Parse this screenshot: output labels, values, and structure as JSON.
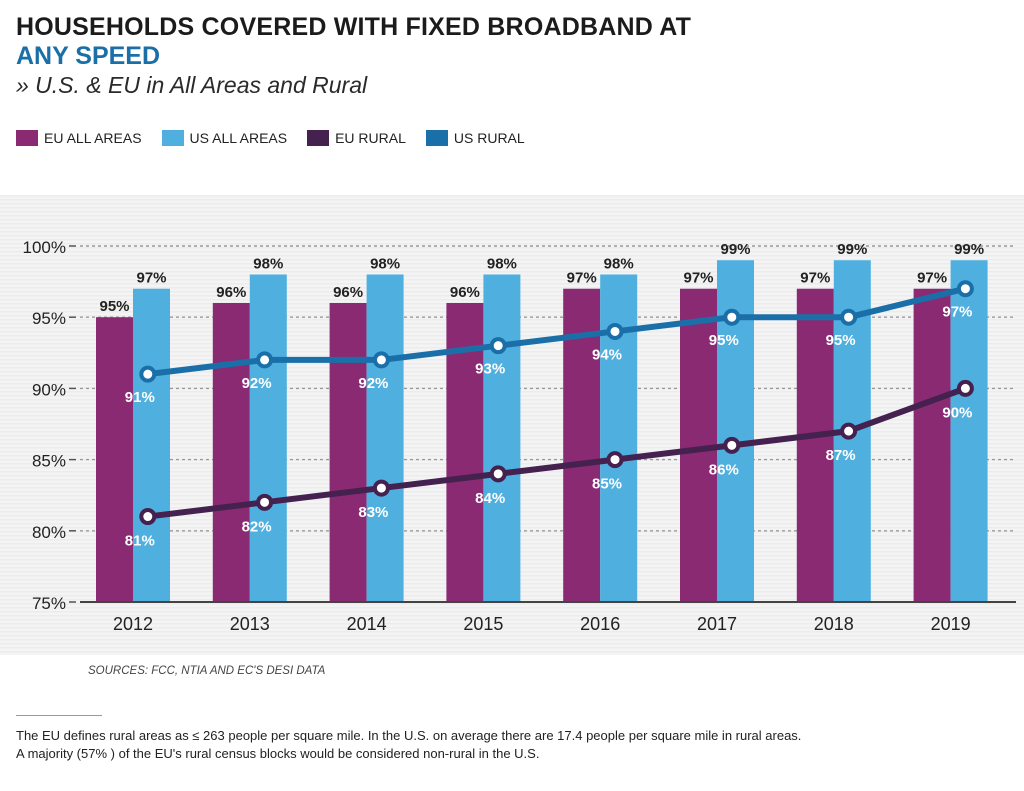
{
  "header": {
    "title_line1": "HOUSEHOLDS COVERED WITH FIXED BROADBAND AT",
    "title_line2": "ANY SPEED",
    "subtitle": "» U.S. & EU in All Areas and Rural"
  },
  "colors": {
    "eu_all": "#8a2a72",
    "us_all": "#4fb0e0",
    "eu_rural": "#45214f",
    "us_rural": "#1a6fa8"
  },
  "chart_data": {
    "type": "bar",
    "categories": [
      "2012",
      "2013",
      "2014",
      "2015",
      "2016",
      "2017",
      "2018",
      "2019"
    ],
    "series": [
      {
        "name": "EU ALL AREAS",
        "type": "bar",
        "values": [
          95,
          96,
          96,
          96,
          97,
          97,
          97,
          97
        ]
      },
      {
        "name": "US ALL AREAS",
        "type": "bar",
        "values": [
          97,
          98,
          98,
          98,
          98,
          99,
          99,
          99
        ]
      },
      {
        "name": "EU RURAL",
        "type": "line",
        "values": [
          81,
          82,
          83,
          84,
          85,
          86,
          87,
          90
        ]
      },
      {
        "name": "US RURAL",
        "type": "line",
        "values": [
          91,
          92,
          92,
          93,
          94,
          95,
          95,
          97
        ]
      }
    ],
    "y_ticks": [
      "75%",
      "80%",
      "85%",
      "90%",
      "95%",
      "100%"
    ],
    "ylim": [
      75,
      100
    ],
    "unit": "%",
    "legend_position": "top-left",
    "grid": true
  },
  "footer": {
    "sources": "SOURCES: FCC, NTIA AND EC'S DESI DATA",
    "note_line1": "The EU defines rural areas as ≤ 263 people per square mile. In the U.S. on average there are 17.4 people per square mile in rural areas.",
    "note_line2": "A majority (57% ) of the EU's rural census blocks would be considered non-rural in the U.S."
  }
}
